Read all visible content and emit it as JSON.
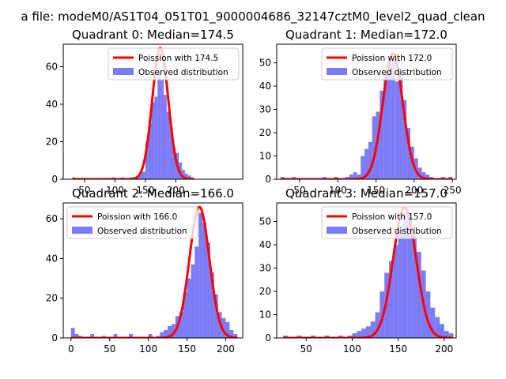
{
  "figure": {
    "suptitle": "a file: modeM0/AS1T04_051T01_9000004686_32147cztM0_level2_quad_clean"
  },
  "colors": {
    "observed_fill": "#7b7bf7",
    "poisson_line": "#ff0000"
  },
  "chart_data": [
    {
      "type": "bar",
      "title": "Quadrant 0: Median=174.5",
      "legend_position": "upper-right",
      "legend": [
        "Poission with 174.5",
        "Observed distribution"
      ],
      "xlim": [
        15,
        310
      ],
      "ylim": [
        0,
        72
      ],
      "xticks": [
        50,
        100,
        150,
        200
      ],
      "xtick_labels": [
        "50",
        "100",
        "150",
        "200"
      ],
      "yticks": [
        0,
        20,
        40,
        60
      ],
      "ytick_labels": [
        "0",
        "20",
        "40",
        "60"
      ],
      "bin_width": 5,
      "observed": {
        "name": "Observed distribution",
        "bins": [
          [
            30,
            1
          ],
          [
            95,
            1
          ],
          [
            110,
            1
          ],
          [
            125,
            1
          ],
          [
            130,
            1
          ],
          [
            135,
            2
          ],
          [
            140,
            4
          ],
          [
            145,
            4
          ],
          [
            150,
            20
          ],
          [
            155,
            30
          ],
          [
            160,
            41
          ],
          [
            165,
            44
          ],
          [
            170,
            57
          ],
          [
            175,
            53
          ],
          [
            180,
            45
          ],
          [
            185,
            36
          ],
          [
            190,
            28
          ],
          [
            195,
            17
          ],
          [
            200,
            14
          ],
          [
            205,
            9
          ],
          [
            210,
            5
          ],
          [
            215,
            3
          ],
          [
            220,
            2
          ],
          [
            225,
            1
          ]
        ]
      },
      "poisson": {
        "name": "Poission with 174.5",
        "mean": 174.5,
        "peak": 70
      }
    },
    {
      "type": "bar",
      "title": "Quadrant 1: Median=172.0",
      "legend_position": "upper-right",
      "legend": [
        "Poission with 172.0",
        "Observed distribution"
      ],
      "xlim": [
        20,
        255
      ],
      "ylim": [
        0,
        58
      ],
      "xticks": [
        50,
        100,
        150,
        200,
        250
      ],
      "xtick_labels": [
        "50",
        "100",
        "150",
        "200",
        "250"
      ],
      "yticks": [
        0,
        10,
        20,
        30,
        40,
        50
      ],
      "ytick_labels": [
        "0",
        "10",
        "20",
        "30",
        "40",
        "50"
      ],
      "bin_width": 5,
      "observed": {
        "name": "Observed distribution",
        "bins": [
          [
            25,
            1
          ],
          [
            40,
            1
          ],
          [
            80,
            1
          ],
          [
            95,
            1
          ],
          [
            110,
            1
          ],
          [
            115,
            2
          ],
          [
            120,
            3
          ],
          [
            125,
            2
          ],
          [
            130,
            10
          ],
          [
            135,
            13
          ],
          [
            140,
            16
          ],
          [
            145,
            27
          ],
          [
            150,
            29
          ],
          [
            155,
            38
          ],
          [
            160,
            44
          ],
          [
            165,
            50
          ],
          [
            170,
            51
          ],
          [
            175,
            42
          ],
          [
            180,
            46
          ],
          [
            185,
            34
          ],
          [
            190,
            22
          ],
          [
            195,
            14
          ],
          [
            200,
            9
          ],
          [
            205,
            5
          ],
          [
            210,
            3
          ],
          [
            215,
            2
          ],
          [
            220,
            1
          ],
          [
            235,
            1
          ],
          [
            245,
            1
          ]
        ]
      },
      "poisson": {
        "name": "Poission with 172.0",
        "mean": 172.0,
        "peak": 54
      }
    },
    {
      "type": "bar",
      "title": "Quadrant 2: Median=166.0",
      "legend_position": "upper-left",
      "legend": [
        "Poission with 166.0",
        "Observed distribution"
      ],
      "xlim": [
        -10,
        222
      ],
      "ylim": [
        0,
        68
      ],
      "xticks": [
        0,
        50,
        100,
        150,
        200
      ],
      "xtick_labels": [
        "0",
        "50",
        "100",
        "150",
        "200"
      ],
      "yticks": [
        0,
        20,
        40,
        60
      ],
      "ytick_labels": [
        "0",
        "20",
        "40",
        "60"
      ],
      "bin_width": 5,
      "observed": {
        "name": "Observed distribution",
        "bins": [
          [
            0,
            5
          ],
          [
            5,
            2
          ],
          [
            10,
            1
          ],
          [
            25,
            2
          ],
          [
            40,
            1
          ],
          [
            55,
            2
          ],
          [
            75,
            2
          ],
          [
            100,
            2
          ],
          [
            110,
            1
          ],
          [
            115,
            3
          ],
          [
            120,
            4
          ],
          [
            125,
            6
          ],
          [
            130,
            7
          ],
          [
            135,
            11
          ],
          [
            140,
            13
          ],
          [
            145,
            23
          ],
          [
            150,
            30
          ],
          [
            155,
            37
          ],
          [
            160,
            46
          ],
          [
            165,
            63
          ],
          [
            170,
            58
          ],
          [
            175,
            48
          ],
          [
            180,
            33
          ],
          [
            185,
            22
          ],
          [
            190,
            13
          ],
          [
            195,
            10
          ],
          [
            200,
            8
          ],
          [
            205,
            4
          ],
          [
            210,
            2
          ]
        ]
      },
      "poisson": {
        "name": "Poission with 166.0",
        "mean": 166.0,
        "peak": 66
      }
    },
    {
      "type": "bar",
      "title": "Quadrant 3: Median=157.0",
      "legend_position": "upper-right",
      "legend": [
        "Poission with 157.0",
        "Observed distribution"
      ],
      "xlim": [
        18,
        213
      ],
      "ylim": [
        0,
        58
      ],
      "xticks": [
        50,
        100,
        150,
        200
      ],
      "xtick_labels": [
        "50",
        "100",
        "150",
        "200"
      ],
      "yticks": [
        0,
        10,
        20,
        30,
        40,
        50
      ],
      "ytick_labels": [
        "0",
        "10",
        "20",
        "30",
        "40",
        "50"
      ],
      "bin_width": 5,
      "observed": {
        "name": "Observed distribution",
        "bins": [
          [
            25,
            1
          ],
          [
            40,
            1
          ],
          [
            55,
            1
          ],
          [
            70,
            1
          ],
          [
            85,
            1
          ],
          [
            95,
            1
          ],
          [
            100,
            2
          ],
          [
            105,
            3
          ],
          [
            110,
            4
          ],
          [
            115,
            5
          ],
          [
            120,
            7
          ],
          [
            125,
            11
          ],
          [
            130,
            20
          ],
          [
            135,
            28
          ],
          [
            140,
            33
          ],
          [
            145,
            40
          ],
          [
            150,
            46
          ],
          [
            155,
            54
          ],
          [
            160,
            52
          ],
          [
            165,
            46
          ],
          [
            170,
            37
          ],
          [
            175,
            29
          ],
          [
            180,
            20
          ],
          [
            185,
            13
          ],
          [
            190,
            9
          ],
          [
            195,
            6
          ],
          [
            200,
            3
          ],
          [
            205,
            2
          ]
        ]
      },
      "poisson": {
        "name": "Poission with 157.0",
        "mean": 157.0,
        "peak": 56
      }
    }
  ]
}
